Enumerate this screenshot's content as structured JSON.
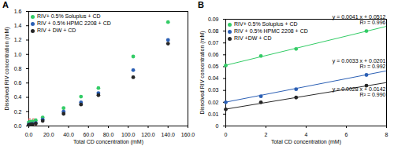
{
  "chart_data": [
    {
      "type": "scatter",
      "title": "A",
      "x_label": "Total CD concentration (mM)",
      "y_label": "Dissolved RIV concentration (mM)",
      "x": [
        0,
        1.75,
        3.5,
        7,
        14,
        35,
        52.5,
        70,
        105,
        140
      ],
      "xlim": [
        0,
        160
      ],
      "ylim": [
        0,
        1.6
      ],
      "xticks": [
        {
          "value": 0,
          "label": "0.0"
        },
        {
          "value": 20,
          "label": "20.0"
        },
        {
          "value": 40,
          "label": "40.0"
        },
        {
          "value": 60,
          "label": "60.0"
        },
        {
          "value": 80,
          "label": "80.0"
        },
        {
          "value": 100,
          "label": "100.0"
        },
        {
          "value": 120,
          "label": "120.0"
        },
        {
          "value": 140,
          "label": "140.0"
        },
        {
          "value": 160,
          "label": "160.0"
        }
      ],
      "yticks": [
        {
          "value": 0,
          "label": "0.0"
        },
        {
          "value": 0.2,
          "label": "0.2"
        },
        {
          "value": 0.4,
          "label": "0.4"
        },
        {
          "value": 0.6,
          "label": "0.6"
        },
        {
          "value": 0.8,
          "label": "0.8"
        },
        {
          "value": 1,
          "label": "1.0"
        },
        {
          "value": 1.2,
          "label": "1.2"
        },
        {
          "value": 1.4,
          "label": "1.4"
        },
        {
          "value": 1.6,
          "label": "1.6"
        }
      ],
      "legend": "top-left",
      "series": [
        {
          "name": "RIV+ 0.5% Soluplus + CD",
          "color": "#33cc66",
          "marker": "circle",
          "values": [
            0.051,
            0.059,
            0.065,
            0.08,
            0.12,
            0.25,
            0.41,
            0.53,
            0.97,
            1.45
          ]
        },
        {
          "name": "RIV + 0.5% HPMC 2208 + CD",
          "color": "#2b5fb4",
          "marker": "circle",
          "values": [
            0.02,
            0.025,
            0.031,
            0.043,
            0.09,
            0.2,
            0.33,
            0.46,
            0.78,
            1.2
          ]
        },
        {
          "name": "RIV + DW + CD",
          "color": "#262626",
          "marker": "circle",
          "values": [
            0.014,
            0.02,
            0.024,
            0.034,
            0.07,
            0.17,
            0.3,
            0.43,
            0.68,
            1.15
          ]
        }
      ]
    },
    {
      "type": "scatter",
      "title": "B",
      "x_label": "Total CD concentration (mM)",
      "y_label": "Dissolved RIV concentration (mM)",
      "x": [
        0,
        1.75,
        3.5,
        7
      ],
      "xlim": [
        0,
        8
      ],
      "ylim": [
        0,
        0.09
      ],
      "xticks": [
        0,
        2,
        4,
        6,
        8
      ],
      "yticks": [
        0,
        0.01,
        0.02,
        0.03,
        0.04,
        0.05,
        0.06,
        0.07,
        0.08,
        0.09
      ],
      "legend": "top-left",
      "series": [
        {
          "name": "RIV+ 0.5% Soluplus + CD",
          "color": "#33cc66",
          "marker": "circle",
          "values": [
            0.051,
            0.059,
            0.065,
            0.08
          ],
          "fit": {
            "slope": 0.0041,
            "intercept": 0.0512,
            "equation": "y = 0.0041 x + 0.0512",
            "r2": "R² = 0.996"
          }
        },
        {
          "name": "RIV + 0.5% HPMC 2208 + CD",
          "color": "#2b5fb4",
          "marker": "circle",
          "values": [
            0.02,
            0.025,
            0.031,
            0.043
          ],
          "fit": {
            "slope": 0.0033,
            "intercept": 0.0201,
            "equation": "y = 0.0033 x + 0.0201",
            "r2": "R² = 0.992"
          }
        },
        {
          "name": "RIV +DW + CD",
          "color": "#262626",
          "marker": "circle",
          "values": [
            0.014,
            0.02,
            0.024,
            0.034
          ],
          "fit": {
            "slope": 0.0028,
            "intercept": 0.0142,
            "equation": "y = 0.0028 x + 0.0142",
            "r2": "R² = 0.990"
          }
        }
      ]
    }
  ]
}
